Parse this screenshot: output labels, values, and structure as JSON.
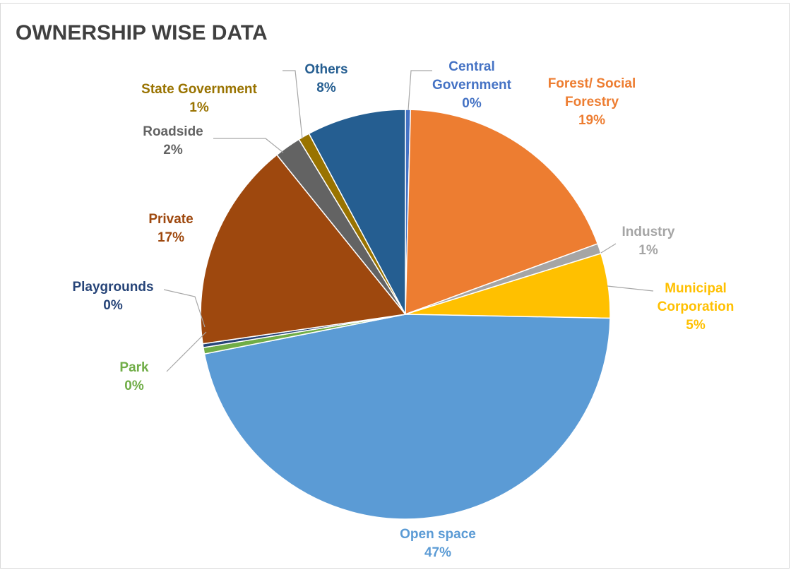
{
  "chart_data": {
    "type": "pie",
    "title": "OWNERSHIP WISE DATA",
    "categories": [
      "Central Government",
      "Forest/ Social Forestry",
      "Industry",
      "Municipal Corporation",
      "Open space",
      "Park",
      "Playgrounds",
      "Private",
      "Roadside",
      "State Government",
      "Others"
    ],
    "values": [
      0.4,
      19,
      0.8,
      5.1,
      46.6,
      0.5,
      0.3,
      16.5,
      2.1,
      0.9,
      7.8
    ],
    "value_labels": [
      "0%",
      "19%",
      "1%",
      "5%",
      "47%",
      "0%",
      "0%",
      "17%",
      "2%",
      "1%",
      "8%"
    ],
    "colors": [
      "#4472c4",
      "#ed7d31",
      "#a5a5a5",
      "#ffc000",
      "#5b9bd5",
      "#70ad47",
      "#264478",
      "#9e480e",
      "#636363",
      "#997300",
      "#255e91"
    ]
  }
}
